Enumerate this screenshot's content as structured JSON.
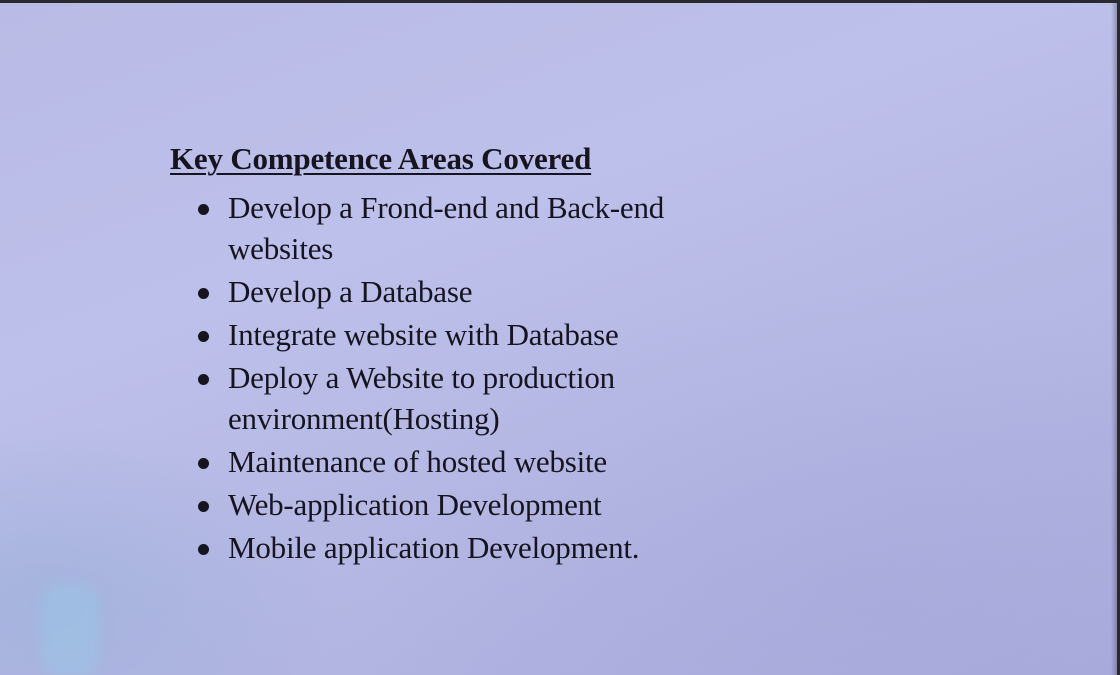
{
  "document": {
    "heading": "Key Competence Areas Covered",
    "items": [
      {
        "text": "Develop a Frond-end and Back-end websites"
      },
      {
        "text": "Develop a Database"
      },
      {
        "text": "Integrate website with Database"
      },
      {
        "text": "Deploy a Website to production environment(Hosting)"
      },
      {
        "text": "Maintenance of hosted website"
      },
      {
        "text": "Web-application Development"
      },
      {
        "text": "Mobile application Development."
      }
    ]
  },
  "colors": {
    "paper": "#bdc0ea",
    "ink": "#15141f"
  }
}
